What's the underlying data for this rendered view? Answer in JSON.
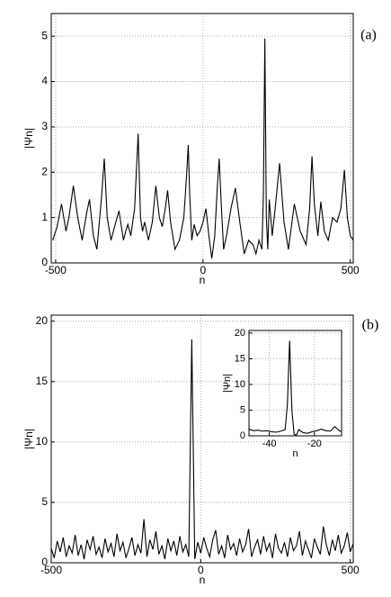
{
  "chart_data": [
    {
      "type": "line",
      "annotation": "(a)",
      "xlabel": "n",
      "ylabel": "|Ψn|",
      "color": "#000000",
      "grid": true,
      "xlim": [
        -515,
        510
      ],
      "ylim": [
        0,
        5.5
      ],
      "xticks": [
        -500,
        0,
        500
      ],
      "yticks": [
        0,
        1,
        2,
        3,
        4,
        5
      ],
      "x": [
        -510,
        -495,
        -480,
        -465,
        -455,
        -440,
        -425,
        -410,
        -395,
        -385,
        -372,
        -360,
        -345,
        -335,
        -325,
        -312,
        -300,
        -285,
        -270,
        -262,
        -255,
        -245,
        -232,
        -220,
        -212,
        -205,
        -198,
        -185,
        -172,
        -160,
        -148,
        -138,
        -128,
        -120,
        -110,
        -95,
        -80,
        -65,
        -55,
        -50,
        -45,
        -38,
        -30,
        -20,
        -10,
        0,
        10,
        20,
        30,
        40,
        48,
        55,
        62,
        70,
        80,
        95,
        110,
        125,
        140,
        155,
        170,
        180,
        190,
        200,
        205,
        210,
        215,
        220,
        225,
        235,
        245,
        260,
        275,
        290,
        310,
        330,
        350,
        362,
        370,
        378,
        390,
        400,
        412,
        425,
        440,
        455,
        468,
        480,
        490,
        500,
        510
      ],
      "values": [
        0.5,
        0.8,
        1.3,
        0.7,
        1.0,
        1.7,
        1.0,
        0.5,
        1.1,
        1.4,
        0.6,
        0.3,
        1.4,
        2.3,
        1.0,
        0.5,
        0.8,
        1.15,
        0.5,
        0.7,
        0.85,
        0.6,
        1.2,
        2.85,
        1.0,
        0.7,
        0.9,
        0.5,
        0.9,
        1.7,
        1.0,
        0.8,
        1.2,
        1.6,
        0.9,
        0.3,
        0.5,
        1.0,
        2.0,
        2.6,
        1.5,
        0.5,
        0.85,
        0.6,
        0.7,
        0.9,
        1.2,
        0.6,
        0.1,
        0.6,
        1.6,
        2.3,
        1.3,
        0.3,
        0.6,
        1.2,
        1.65,
        0.9,
        0.2,
        0.5,
        0.4,
        0.2,
        0.5,
        0.3,
        1.5,
        4.95,
        1.0,
        0.3,
        1.4,
        0.6,
        1.2,
        2.2,
        0.9,
        0.3,
        1.3,
        0.7,
        0.4,
        1.2,
        2.35,
        1.3,
        0.6,
        1.35,
        0.7,
        0.5,
        1.0,
        0.9,
        1.2,
        2.05,
        1.0,
        0.6,
        0.5
      ]
    },
    {
      "type": "line",
      "annotation": "(b)",
      "xlabel": "n",
      "ylabel": "|Ψn|",
      "color": "#000000",
      "grid": true,
      "xlim": [
        -500,
        510
      ],
      "ylim": [
        0,
        20.5
      ],
      "xticks": [
        -500,
        0,
        500
      ],
      "yticks": [
        0,
        5,
        10,
        15,
        20
      ],
      "x": [
        -500,
        -490,
        -480,
        -470,
        -460,
        -450,
        -440,
        -430,
        -420,
        -410,
        -400,
        -390,
        -380,
        -370,
        -360,
        -350,
        -340,
        -330,
        -320,
        -310,
        -300,
        -290,
        -280,
        -270,
        -260,
        -250,
        -240,
        -230,
        -220,
        -210,
        -200,
        -190,
        -180,
        -170,
        -160,
        -150,
        -140,
        -130,
        -120,
        -110,
        -100,
        -90,
        -80,
        -70,
        -60,
        -50,
        -40,
        -30,
        -20,
        -10,
        0,
        10,
        20,
        30,
        40,
        50,
        60,
        70,
        80,
        90,
        100,
        110,
        120,
        130,
        140,
        150,
        160,
        170,
        180,
        190,
        200,
        210,
        220,
        230,
        240,
        250,
        260,
        270,
        280,
        290,
        300,
        310,
        320,
        330,
        340,
        350,
        360,
        370,
        380,
        390,
        400,
        410,
        420,
        430,
        440,
        450,
        460,
        470,
        480,
        490,
        500,
        510
      ],
      "values": [
        1.2,
        0.4,
        1.8,
        0.9,
        2.1,
        0.5,
        1.4,
        0.8,
        2.3,
        0.6,
        1.5,
        0.3,
        1.9,
        1.1,
        2.2,
        0.7,
        1.3,
        0.4,
        2.0,
        0.9,
        1.6,
        0.5,
        2.4,
        1.0,
        1.7,
        0.4,
        1.2,
        2.1,
        0.6,
        1.5,
        0.8,
        3.6,
        0.5,
        1.9,
        1.1,
        2.6,
        0.7,
        1.4,
        0.3,
        2.0,
        1.0,
        1.8,
        0.6,
        2.2,
        0.9,
        1.5,
        0.5,
        18.5,
        0.3,
        1.7,
        0.8,
        2.1,
        1.2,
        0.5,
        1.9,
        2.7,
        0.7,
        1.4,
        0.4,
        2.3,
        1.1,
        1.6,
        0.6,
        2.0,
        0.9,
        1.5,
        2.8,
        0.5,
        1.3,
        1.9,
        0.7,
        2.2,
        1.0,
        1.6,
        0.4,
        2.4,
        1.2,
        0.8,
        1.7,
        0.5,
        2.1,
        1.0,
        1.4,
        2.6,
        0.6,
        1.8,
        1.1,
        0.4,
        2.0,
        1.3,
        0.7,
        3.0,
        1.5,
        0.6,
        1.9,
        1.0,
        2.3,
        0.8,
        1.4,
        2.5,
        0.9,
        1.6
      ]
    },
    {
      "type": "line",
      "xlabel": "n",
      "ylabel": "|Ψn|",
      "color": "#000000",
      "grid": true,
      "xlim": [
        -49,
        -8
      ],
      "ylim": [
        0,
        20.5
      ],
      "xticks": [
        -40,
        -20
      ],
      "yticks": [
        0,
        5,
        10,
        15,
        20
      ],
      "x": [
        -49,
        -47,
        -45,
        -43,
        -41,
        -39,
        -37,
        -35,
        -33,
        -32,
        -31,
        -30,
        -29,
        -28,
        -27,
        -25,
        -23,
        -21,
        -19,
        -17,
        -15,
        -13,
        -11,
        -9,
        -8
      ],
      "values": [
        1.3,
        1.0,
        1.1,
        0.9,
        1.0,
        0.8,
        0.7,
        0.9,
        1.2,
        6,
        18.5,
        5,
        0.3,
        0.1,
        1.2,
        0.6,
        0.5,
        0.8,
        1.0,
        1.3,
        1.0,
        0.9,
        1.8,
        1.0,
        0.8
      ]
    }
  ]
}
